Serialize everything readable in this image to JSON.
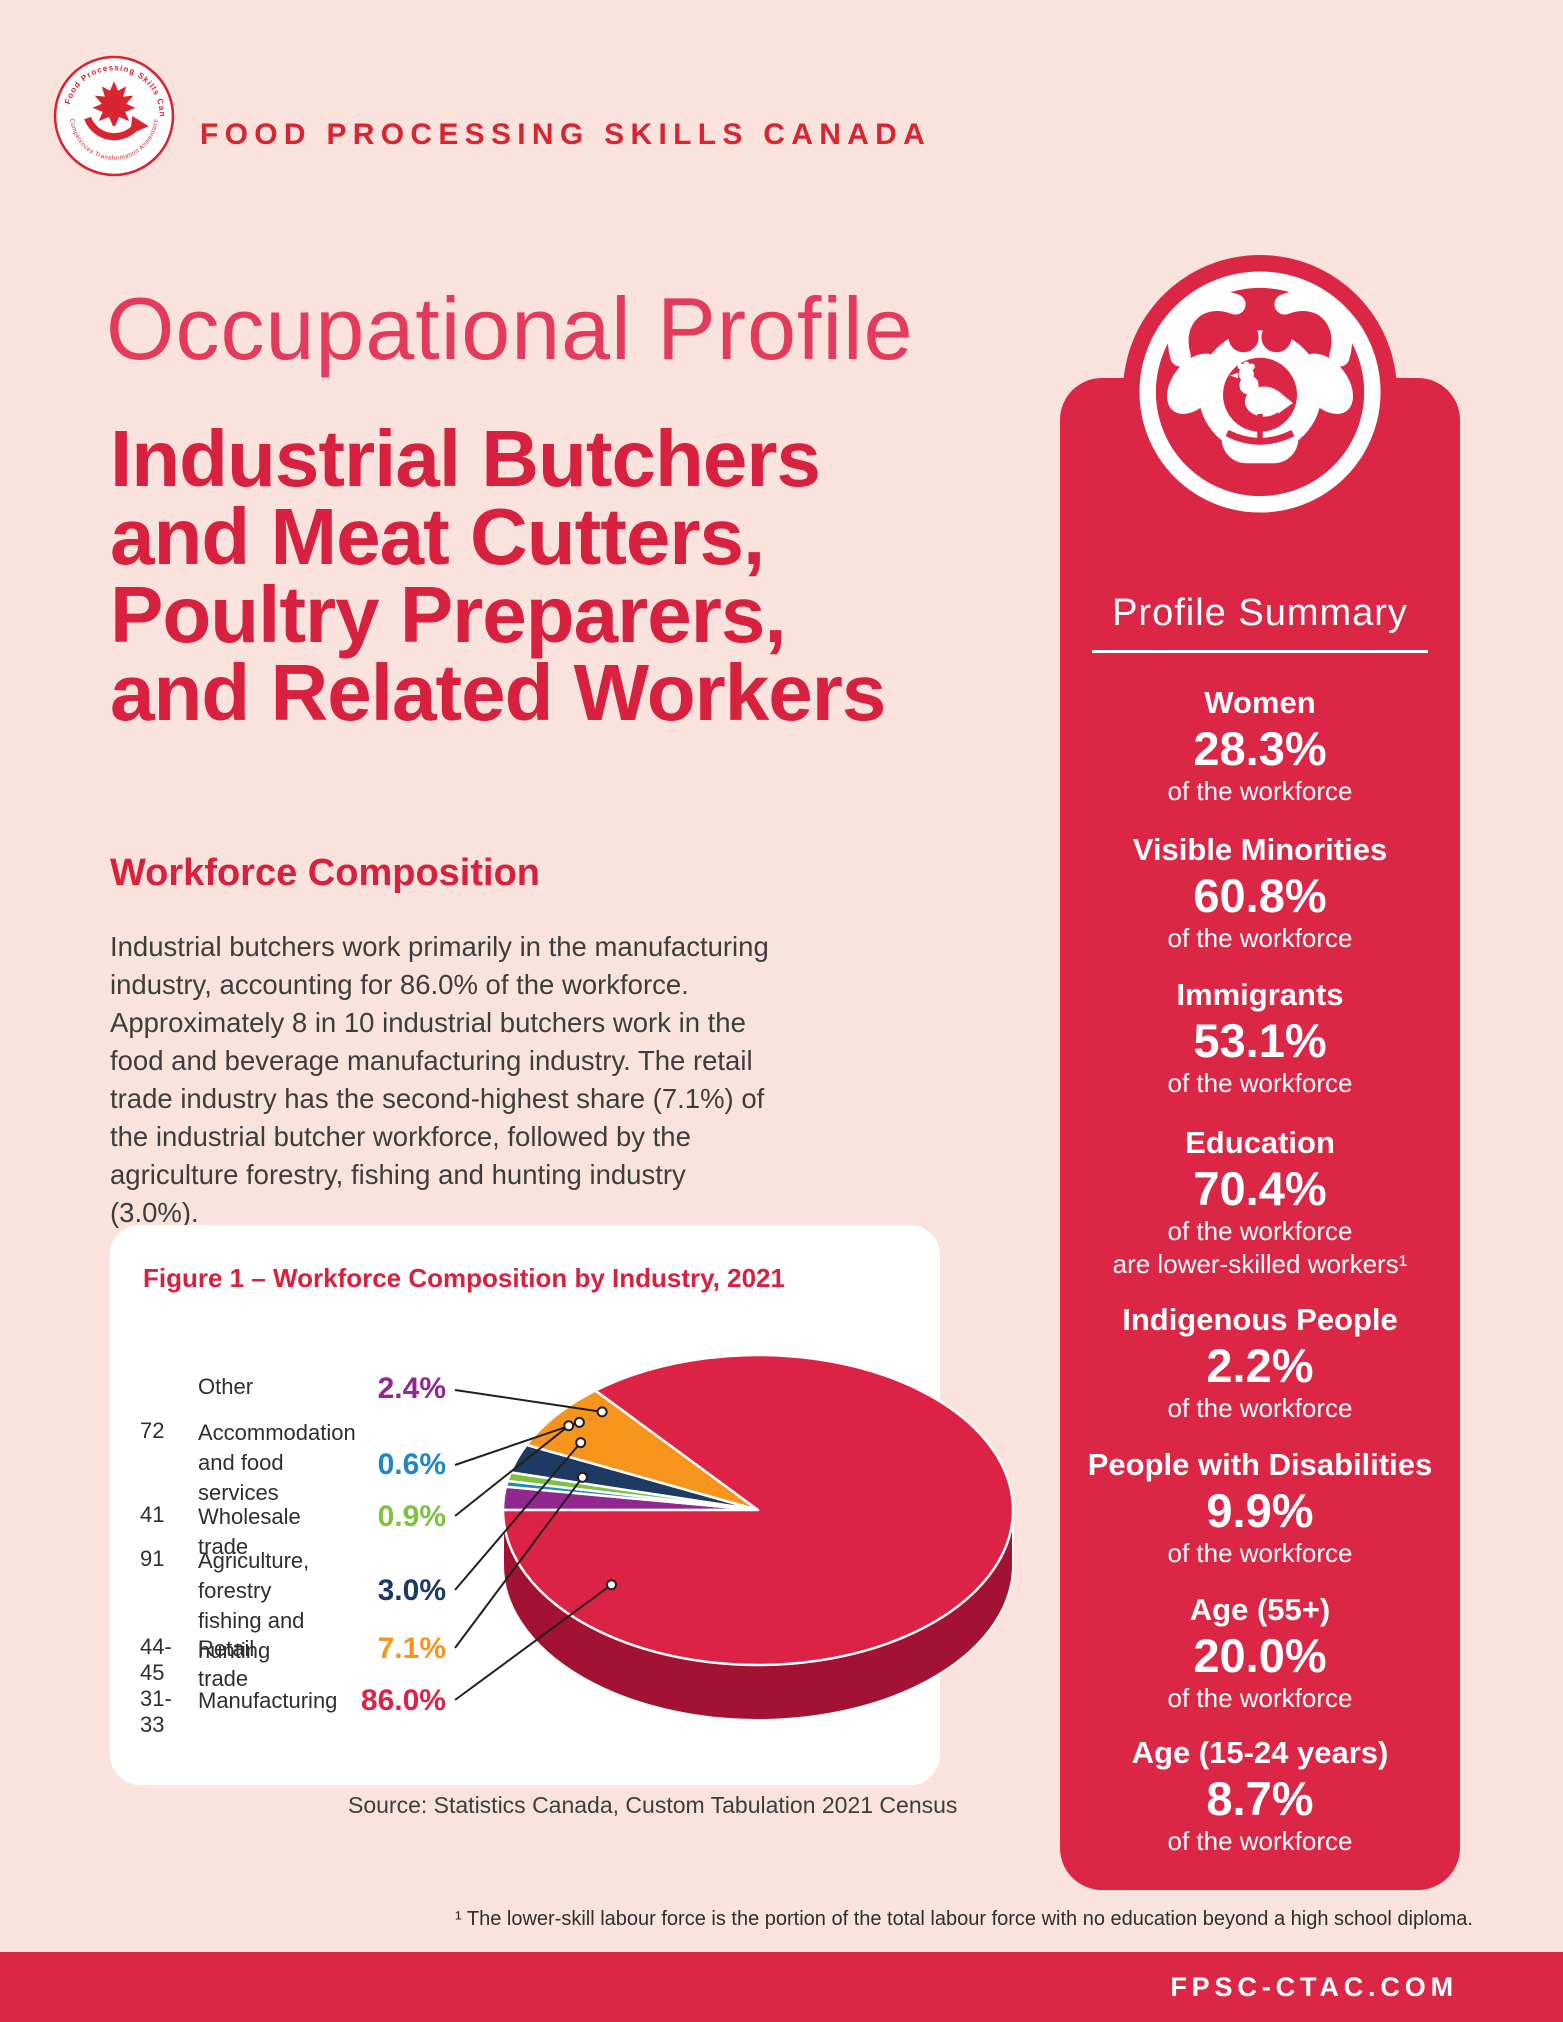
{
  "brand": {
    "header": "FOOD PROCESSING SKILLS CANADA",
    "seal_top_text": "Food Processing Skills Canada",
    "seal_bottom_text": "Compétences Transformation Alimentaire Canada"
  },
  "titles": {
    "eyebrow": "Occupational Profile",
    "main_lines": [
      "Industrial Butchers",
      "and Meat Cutters,",
      "Poultry Preparers,",
      "and Related Workers"
    ]
  },
  "section": {
    "heading": "Workforce Composition",
    "paragraph": "Industrial butchers work primarily in the manufacturing industry, accounting for 86.0% of the workforce. Approximately 8 in 10 industrial butchers work in the food and beverage manufacturing industry. The retail trade industry has the second-highest share (7.1%) of the industrial butcher workforce, followed by the agriculture forestry, fishing and hunting industry (3.0%)."
  },
  "chart_data": {
    "type": "pie",
    "title": "Figure 1 – Workforce Composition by Industry, 2021",
    "source": "Source: Statistics Canada, Custom Tabulation 2021 Census",
    "style": "3d-pie, legend left with leader lines, white slice separators",
    "slices": [
      {
        "code": "",
        "label_lines": [
          "Other"
        ],
        "value": 2.4,
        "display": "2.4%",
        "color": "#92278f"
      },
      {
        "code": "72",
        "label_lines": [
          "Accommodation",
          "and food services"
        ],
        "value": 0.6,
        "display": "0.6%",
        "color": "#1f87c8"
      },
      {
        "code": "41",
        "label_lines": [
          "Wholesale trade"
        ],
        "value": 0.9,
        "display": "0.9%",
        "color": "#7dc242"
      },
      {
        "code": "91",
        "label_lines": [
          "Agriculture, forestry",
          "fishing and hunting"
        ],
        "value": 3.0,
        "display": "3.0%",
        "color": "#1e3a63"
      },
      {
        "code": "44-45",
        "label_lines": [
          "Retail trade"
        ],
        "value": 7.1,
        "display": "7.1%",
        "color": "#f7941e"
      },
      {
        "code": "31-33",
        "label_lines": [
          "Manufacturing"
        ],
        "value": 86.0,
        "display": "86.0%",
        "color": "#dc2345"
      }
    ],
    "side_color": "#a31232",
    "start_angle_deg": 180,
    "direction": "small slices fan upward from left horizontal; Manufacturing wraps remainder"
  },
  "sidebar": {
    "heading": "Profile Summary",
    "icon": "cow-head-with-chicken-icon",
    "stats": [
      {
        "label": "Women",
        "value": "28.3%",
        "captions": [
          "of the workforce"
        ]
      },
      {
        "label": "Visible Minorities",
        "value": "60.8%",
        "captions": [
          "of the workforce"
        ]
      },
      {
        "label": "Immigrants",
        "value": "53.1%",
        "captions": [
          "of the workforce"
        ]
      },
      {
        "label": "Education",
        "value": "70.4%",
        "captions": [
          "of the workforce",
          "are lower-skilled workers¹"
        ]
      },
      {
        "label": "Indigenous People",
        "value": "2.2%",
        "captions": [
          "of the workforce"
        ]
      },
      {
        "label": "People with Disabilities",
        "value": "9.9%",
        "captions": [
          "of the workforce"
        ]
      },
      {
        "label": "Age (55+)",
        "value": "20.0%",
        "captions": [
          "of the workforce"
        ]
      },
      {
        "label": "Age (15-24 years)",
        "value": "8.7%",
        "captions": [
          "of the workforce"
        ]
      }
    ]
  },
  "footnote": "¹ The lower-skill labour force is the portion of the total labour force with no education beyond a high school diploma.",
  "footer": {
    "url": "FPSC-CTAC.COM"
  },
  "colors": {
    "background": "#f9e3dc",
    "card": "#ffffff",
    "crimson": "#dc2646",
    "title_red": "#d8203f",
    "brand_red": "#d92432",
    "pie_side": "#a31232",
    "body_text": "#3d3d3d"
  }
}
